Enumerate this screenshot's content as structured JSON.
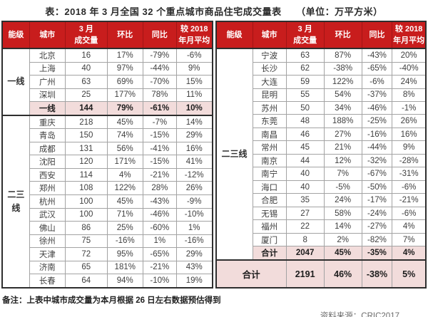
{
  "title": "表：2018 年 3 月全国 32 个重点城市商品住宅成交量表　　（单位：万平方米）",
  "note": "备注：上表中城市成交量为本月根据 26 日左右数据预估得到",
  "source": "资料来源：CRIC2017",
  "colors": {
    "header_bg": "#c81d1d",
    "header_text": "#ffffff",
    "highlight_bg": "#f2dcdb",
    "border_dark": "#2e2e2e"
  },
  "chart_data": {
    "type": "table",
    "title": "2018年3月全国32个重点城市商品住宅成交量表",
    "unit": "万平方米",
    "columns": [
      "能级",
      "城市",
      "3 月\n成交量",
      "环比",
      "同比",
      "较 2018\n年月平均"
    ],
    "left_table": {
      "groups": [
        {
          "tier": "一线",
          "rows": [
            [
              "北京",
              "16",
              "17%",
              "-79%",
              "-6%"
            ],
            [
              "上海",
              "40",
              "97%",
              "-44%",
              "9%"
            ],
            [
              "广州",
              "63",
              "69%",
              "-70%",
              "15%"
            ],
            [
              "深圳",
              "25",
              "177%",
              "78%",
              "11%"
            ]
          ],
          "summary": [
            "一线",
            "144",
            "79%",
            "-61%",
            "10%"
          ]
        },
        {
          "tier": "二三\n线",
          "rows": [
            [
              "重庆",
              "218",
              "45%",
              "-7%",
              "14%"
            ],
            [
              "青岛",
              "150",
              "74%",
              "-15%",
              "29%"
            ],
            [
              "成都",
              "131",
              "56%",
              "-41%",
              "16%"
            ],
            [
              "沈阳",
              "120",
              "171%",
              "-15%",
              "41%"
            ],
            [
              "西安",
              "114",
              "4%",
              "-21%",
              "-12%"
            ],
            [
              "郑州",
              "108",
              "122%",
              "28%",
              "26%"
            ],
            [
              "杭州",
              "100",
              "45%",
              "-43%",
              "-9%"
            ],
            [
              "武汉",
              "100",
              "71%",
              "-46%",
              "-10%"
            ],
            [
              "佛山",
              "86",
              "25%",
              "-60%",
              "1%"
            ],
            [
              "徐州",
              "75",
              "-16%",
              "1%",
              "-16%"
            ],
            [
              "天津",
              "72",
              "95%",
              "-65%",
              "29%"
            ],
            [
              "济南",
              "65",
              "181%",
              "-21%",
              "43%"
            ],
            [
              "长春",
              "64",
              "94%",
              "-10%",
              "19%"
            ]
          ]
        }
      ]
    },
    "right_table": {
      "groups": [
        {
          "tier": "二三线",
          "rows": [
            [
              "宁波",
              "63",
              "87%",
              "-43%",
              "20%"
            ],
            [
              "长沙",
              "62",
              "-38%",
              "-65%",
              "-40%"
            ],
            [
              "大连",
              "59",
              "122%",
              "-6%",
              "24%"
            ],
            [
              "昆明",
              "55",
              "54%",
              "-37%",
              "8%"
            ],
            [
              "苏州",
              "50",
              "34%",
              "-46%",
              "-1%"
            ],
            [
              "东莞",
              "48",
              "188%",
              "-25%",
              "26%"
            ],
            [
              "南昌",
              "46",
              "27%",
              "-16%",
              "16%"
            ],
            [
              "常州",
              "45",
              "21%",
              "-44%",
              "9%"
            ],
            [
              "南京",
              "44",
              "12%",
              "-32%",
              "-28%"
            ],
            [
              "南宁",
              "40",
              "7%",
              "-67%",
              "-31%"
            ],
            [
              "海口",
              "40",
              "-5%",
              "-50%",
              "-6%"
            ],
            [
              "合肥",
              "35",
              "24%",
              "-17%",
              "-21%"
            ],
            [
              "无锡",
              "27",
              "58%",
              "-24%",
              "-6%"
            ],
            [
              "福州",
              "22",
              "14%",
              "-27%",
              "4%"
            ],
            [
              "厦门",
              "8",
              "2%",
              "-82%",
              "7%"
            ]
          ],
          "summary": [
            "合计",
            "2047",
            "45%",
            "-35%",
            "4%"
          ]
        }
      ],
      "grand_total": {
        "label": "合计",
        "values": [
          "2191",
          "46%",
          "-38%",
          "5%"
        ]
      }
    }
  }
}
